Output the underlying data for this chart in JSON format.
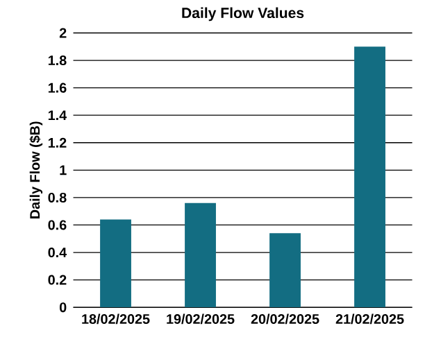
{
  "chart_data": {
    "type": "bar",
    "title": "Daily Flow Values",
    "ylabel": "Daily Flow ($B)",
    "categories": [
      "18/02/2025",
      "19/02/2025",
      "20/02/2025",
      "21/02/2025"
    ],
    "values": [
      0.64,
      0.76,
      0.54,
      1.9
    ],
    "color": "#136d82",
    "ylim": [
      0,
      2
    ],
    "yticks": [
      0,
      0.2,
      0.4,
      0.6,
      0.8,
      1,
      1.2,
      1.4,
      1.6,
      1.8,
      2
    ],
    "grid": "y"
  }
}
